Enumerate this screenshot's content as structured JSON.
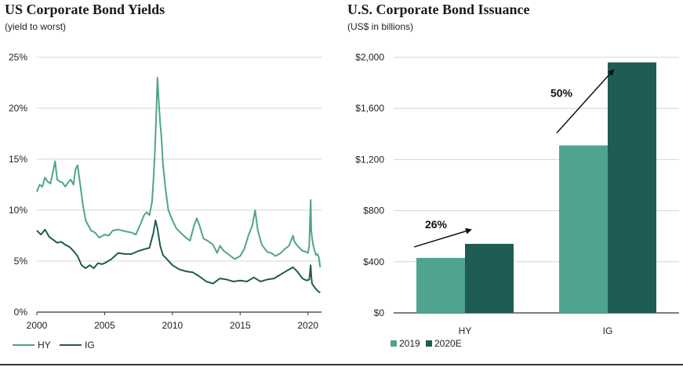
{
  "colors": {
    "hy_line": "#4fa48f",
    "ig_line": "#1f5c53",
    "bar_2019": "#4fa48f",
    "bar_2020e": "#1f5c53",
    "grid": "#d4d4d4",
    "axis": "#333333",
    "text": "#222222"
  },
  "chart_data": [
    {
      "type": "line",
      "title": "US Corporate Bond Yields",
      "subtitle": "(yield to worst)",
      "xlabel": "",
      "ylabel": "",
      "xlim": [
        2000,
        2021
      ],
      "ylim": [
        0,
        25
      ],
      "x_ticks": [
        2000,
        2005,
        2010,
        2015,
        2020
      ],
      "x_tick_labels": [
        "2000",
        "2005",
        "2010",
        "2015",
        "2020"
      ],
      "y_ticks": [
        0,
        5,
        10,
        15,
        20,
        25
      ],
      "y_tick_labels": [
        "0%",
        "5%",
        "10%",
        "15%",
        "20%",
        "25%"
      ],
      "grid": true,
      "legend": "bottom-left",
      "series": [
        {
          "name": "HY",
          "x": [
            2000.0,
            2000.2,
            2000.4,
            2000.6,
            2000.8,
            2001.0,
            2001.2,
            2001.35,
            2001.5,
            2001.7,
            2001.9,
            2002.1,
            2002.3,
            2002.5,
            2002.7,
            2002.85,
            2003.0,
            2003.2,
            2003.4,
            2003.6,
            2003.8,
            2004.0,
            2004.3,
            2004.6,
            2005.0,
            2005.3,
            2005.6,
            2006.0,
            2006.3,
            2006.6,
            2007.0,
            2007.3,
            2007.5,
            2007.7,
            2007.9,
            2008.1,
            2008.3,
            2008.5,
            2008.6,
            2008.7,
            2008.8,
            2008.9,
            2009.0,
            2009.1,
            2009.2,
            2009.3,
            2009.5,
            2009.7,
            2010.0,
            2010.3,
            2010.6,
            2011.0,
            2011.3,
            2011.6,
            2011.8,
            2012.0,
            2012.3,
            2012.6,
            2013.0,
            2013.3,
            2013.5,
            2013.8,
            2014.0,
            2014.3,
            2014.6,
            2015.0,
            2015.3,
            2015.6,
            2015.9,
            2016.1,
            2016.3,
            2016.6,
            2017.0,
            2017.3,
            2017.6,
            2018.0,
            2018.3,
            2018.6,
            2018.9,
            2019.0,
            2019.3,
            2019.6,
            2019.9,
            2020.0,
            2020.1,
            2020.15,
            2020.2,
            2020.25,
            2020.3,
            2020.4,
            2020.5,
            2020.6,
            2020.7,
            2020.8,
            2020.9
          ],
          "values": [
            11.8,
            12.5,
            12.3,
            13.2,
            12.8,
            12.6,
            13.8,
            14.8,
            13.0,
            12.8,
            12.7,
            12.3,
            12.7,
            13.0,
            12.5,
            14.0,
            14.4,
            12.5,
            10.5,
            9.0,
            8.5,
            8.0,
            7.8,
            7.3,
            7.6,
            7.5,
            8.0,
            8.1,
            8.0,
            7.9,
            7.8,
            7.6,
            8.2,
            8.8,
            9.5,
            9.8,
            9.5,
            10.8,
            13.0,
            15.5,
            19.0,
            23.0,
            20.5,
            18.5,
            17.0,
            14.5,
            12.0,
            10.0,
            9.0,
            8.2,
            7.8,
            7.3,
            7.0,
            8.5,
            9.2,
            8.5,
            7.2,
            7.0,
            6.6,
            5.8,
            6.5,
            6.0,
            5.8,
            5.5,
            5.2,
            5.5,
            6.2,
            7.5,
            8.5,
            10.0,
            8.0,
            6.6,
            5.9,
            5.8,
            5.5,
            5.8,
            6.2,
            6.5,
            7.5,
            6.9,
            6.4,
            6.0,
            5.9,
            5.8,
            6.5,
            9.0,
            11.0,
            8.0,
            7.3,
            6.5,
            6.0,
            5.6,
            5.7,
            5.4,
            4.4
          ]
        },
        {
          "name": "IG",
          "x": [
            2000.0,
            2000.3,
            2000.6,
            2000.9,
            2001.2,
            2001.5,
            2001.8,
            2002.1,
            2002.4,
            2002.7,
            2003.0,
            2003.3,
            2003.6,
            2003.9,
            2004.2,
            2004.5,
            2004.8,
            2005.0,
            2005.5,
            2006.0,
            2006.5,
            2007.0,
            2007.5,
            2008.0,
            2008.3,
            2008.6,
            2008.75,
            2008.9,
            2009.1,
            2009.3,
            2009.6,
            2010.0,
            2010.5,
            2011.0,
            2011.5,
            2012.0,
            2012.5,
            2013.0,
            2013.5,
            2014.0,
            2014.5,
            2015.0,
            2015.5,
            2016.0,
            2016.5,
            2017.0,
            2017.5,
            2018.0,
            2018.5,
            2018.9,
            2019.2,
            2019.6,
            2019.9,
            2020.1,
            2020.2,
            2020.25,
            2020.3,
            2020.5,
            2020.7,
            2020.9
          ],
          "values": [
            8.0,
            7.6,
            8.1,
            7.4,
            7.1,
            6.8,
            6.9,
            6.6,
            6.4,
            6.0,
            5.5,
            4.6,
            4.3,
            4.6,
            4.3,
            4.8,
            4.7,
            4.8,
            5.2,
            5.8,
            5.7,
            5.7,
            6.0,
            6.2,
            6.3,
            7.8,
            9.0,
            8.2,
            6.5,
            5.6,
            5.2,
            4.6,
            4.2,
            4.0,
            3.9,
            3.5,
            3.0,
            2.8,
            3.3,
            3.2,
            3.0,
            3.1,
            3.0,
            3.4,
            3.0,
            3.2,
            3.3,
            3.7,
            4.1,
            4.4,
            4.0,
            3.3,
            3.1,
            3.2,
            4.6,
            3.5,
            2.8,
            2.4,
            2.1,
            1.9
          ]
        }
      ]
    },
    {
      "type": "bar",
      "title": "U.S. Corporate Bond Issuance",
      "subtitle": "(US$ in billions)",
      "categories": [
        "HY",
        "IG"
      ],
      "series": [
        {
          "name": "2019",
          "values": [
            430,
            1310
          ]
        },
        {
          "name": "2020E",
          "values": [
            540,
            1960
          ]
        }
      ],
      "ylim": [
        0,
        2000
      ],
      "y_ticks": [
        0,
        400,
        800,
        1200,
        1600,
        2000
      ],
      "y_tick_labels": [
        "$0",
        "$400",
        "$800",
        "$1,200",
        "$1,600",
        "$2,000"
      ],
      "annotations": [
        {
          "category": "HY",
          "text": "26%"
        },
        {
          "category": "IG",
          "text": "50%"
        }
      ],
      "grid": true,
      "legend": "bottom-left"
    }
  ]
}
